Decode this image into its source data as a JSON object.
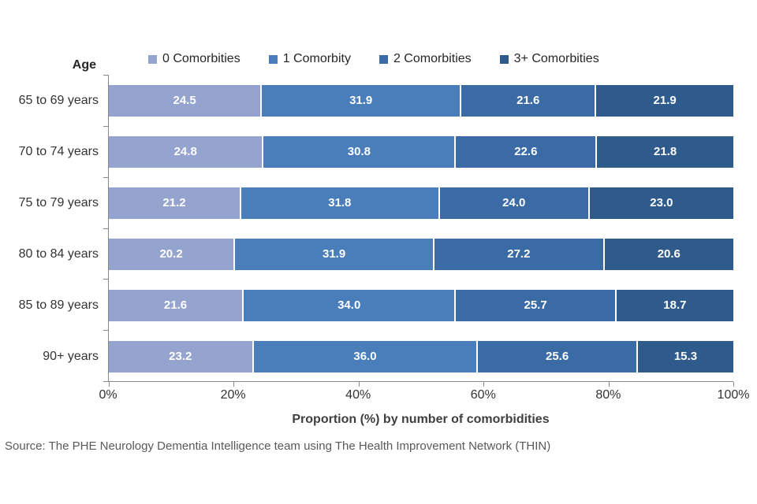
{
  "axis": {
    "y_title": "Age",
    "x_title": "Proportion (%) by number of comorbidities",
    "x_ticks": [
      "0%",
      "20%",
      "40%",
      "60%",
      "80%",
      "100%"
    ]
  },
  "source": "Source: The PHE Neurology Dementia Intelligence team using The Health Improvement Network (THIN)",
  "chart_data": {
    "type": "bar",
    "orientation": "horizontal",
    "stacked": true,
    "title": "",
    "xlabel": "Proportion (%) by number of comorbidities",
    "ylabel": "Age",
    "xlim": [
      0,
      100
    ],
    "x_tick_step": 20,
    "grid": false,
    "legend_position": "top",
    "value_labels": "white bold, one decimal",
    "categories": [
      "65 to 69 years",
      "70 to 74 years",
      "75 to 79 years",
      "80 to 84 years",
      "85 to 89 years",
      "90+ years"
    ],
    "series": [
      {
        "name": "0 Comorbities",
        "color": "#95A4CF",
        "values": [
          24.5,
          24.8,
          21.2,
          20.2,
          21.6,
          23.2
        ]
      },
      {
        "name": "1 Comorbity",
        "color": "#4A7EBB",
        "values": [
          31.9,
          30.8,
          31.8,
          31.9,
          34.0,
          36.0
        ]
      },
      {
        "name": "2 Comorbities",
        "color": "#3A6BA5",
        "values": [
          21.6,
          22.6,
          24.0,
          27.2,
          25.7,
          25.6
        ]
      },
      {
        "name": "3+ Comorbities",
        "color": "#2F5B8C",
        "values": [
          21.9,
          21.8,
          23.0,
          20.6,
          18.7,
          15.3
        ]
      }
    ]
  }
}
